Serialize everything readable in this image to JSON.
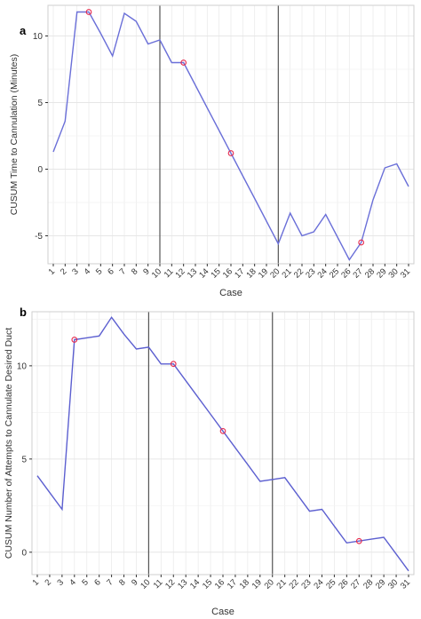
{
  "chart_data": [
    {
      "panel_label": "a",
      "type": "line",
      "xlabel": "Case",
      "ylabel": "CUSUM Time to Cannulation (Minutes)",
      "ylim": [
        -7.1,
        12.3
      ],
      "y_ticks": [
        -5,
        0,
        5,
        10
      ],
      "categories": [
        "1",
        "2",
        "3",
        "4",
        "5",
        "6",
        "7",
        "8",
        "9",
        "10",
        "11",
        "12",
        "13",
        "14",
        "15",
        "16",
        "17",
        "18",
        "19",
        "20",
        "21",
        "22",
        "23",
        "24",
        "25",
        "26",
        "27",
        "28",
        "29",
        "30",
        "31"
      ],
      "series": [
        {
          "values": [
            1.3,
            3.6,
            11.8,
            11.8,
            10.2,
            8.5,
            11.7,
            11.1,
            9.4,
            9.7,
            8.0,
            8.0,
            6.3,
            4.6,
            2.9,
            1.2,
            -0.5,
            -2.2,
            -3.9,
            -5.6,
            -3.3,
            -5.0,
            -4.7,
            -3.4,
            -5.1,
            -6.8,
            -5.5,
            -2.3,
            0.1,
            0.4,
            -1.3
          ],
          "color": "#6a6fd8"
        }
      ],
      "highlighted_cases": [
        "4",
        "12",
        "16",
        "27"
      ],
      "highlight_color": "#e8294c",
      "vertical_lines_at": [
        "10",
        "20"
      ],
      "grid": true
    },
    {
      "panel_label": "b",
      "type": "line",
      "xlabel": "Case",
      "ylabel": "CUSUM Number of Attempts to Cannulate Desired Duct",
      "ylim": [
        -1.2,
        12.9
      ],
      "y_ticks": [
        0,
        5,
        10
      ],
      "categories": [
        "1",
        "2",
        "3",
        "4",
        "5",
        "6",
        "7",
        "8",
        "9",
        "10",
        "11",
        "12",
        "13",
        "14",
        "15",
        "16",
        "17",
        "18",
        "19",
        "20",
        "21",
        "22",
        "23",
        "24",
        "25",
        "26",
        "27",
        "28",
        "29",
        "30",
        "31"
      ],
      "series": [
        {
          "values": [
            4.1,
            3.2,
            2.3,
            11.4,
            11.5,
            11.6,
            12.6,
            11.7,
            10.9,
            11.0,
            10.1,
            10.1,
            9.2,
            8.3,
            7.4,
            6.5,
            5.6,
            4.7,
            3.8,
            3.9,
            4.0,
            3.1,
            2.2,
            2.3,
            1.4,
            0.5,
            0.6,
            0.7,
            0.8,
            -0.1,
            -1.0
          ],
          "color": "#5c5fd0"
        }
      ],
      "highlighted_cases": [
        "4",
        "12",
        "16",
        "27"
      ],
      "highlight_color": "#e8294c",
      "vertical_lines_at": [
        "10",
        "20"
      ],
      "grid": true
    }
  ]
}
